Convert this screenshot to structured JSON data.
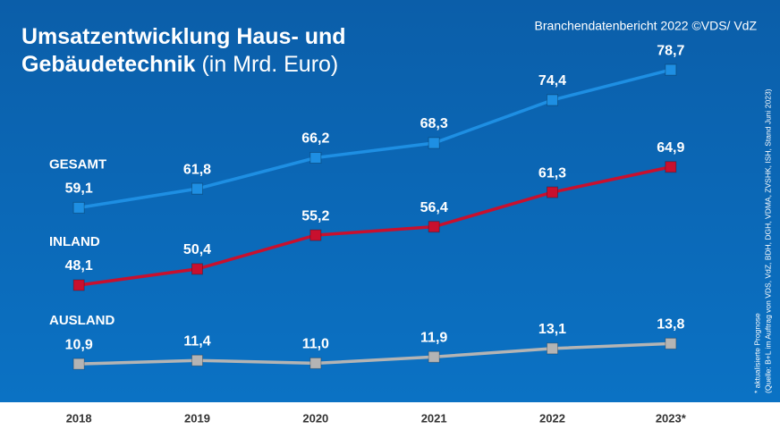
{
  "chart_data": {
    "type": "line",
    "title": "Umsatzentwicklung Haus- und Gebäudetechnik",
    "subtitle": "(in Mrd. Euro)",
    "source": "Branchendatenbericht 2022 ©VDS/ VdZ",
    "footnote": "* aktualisierte Prognose",
    "note": "(Quelle: B+L im Auftrag von VDS, VdZ, BDH, DGH, VDMA, ZVSHK, ISH, Stand Juni 2023)",
    "categories": [
      "2018",
      "2019",
      "2020",
      "2021",
      "2022",
      "2023*"
    ],
    "ylim": [
      34,
      81
    ],
    "y2lim": [
      8,
      55
    ],
    "series": [
      {
        "name": "GESAMT",
        "color": "#1e8fe3",
        "values": [
          59.1,
          61.8,
          66.2,
          68.3,
          74.4,
          78.7
        ],
        "value_labels": [
          "59,1",
          "61,8",
          "66,2",
          "68,3",
          "74,4",
          "78,7"
        ]
      },
      {
        "name": "INLAND",
        "color": "#c8102e",
        "values": [
          48.1,
          50.4,
          55.2,
          56.4,
          61.3,
          64.9
        ],
        "value_labels": [
          "48,1",
          "50,4",
          "55,2",
          "56,4",
          "61,3",
          "64,9"
        ]
      },
      {
        "name": "AUSLAND",
        "color": "#b4b4b4",
        "axis": "y2",
        "values": [
          10.9,
          11.4,
          11.0,
          11.9,
          13.1,
          13.8
        ],
        "value_labels": [
          "10,9",
          "11,4",
          "11,0",
          "11,9",
          "13,1",
          "13,8"
        ]
      }
    ]
  }
}
